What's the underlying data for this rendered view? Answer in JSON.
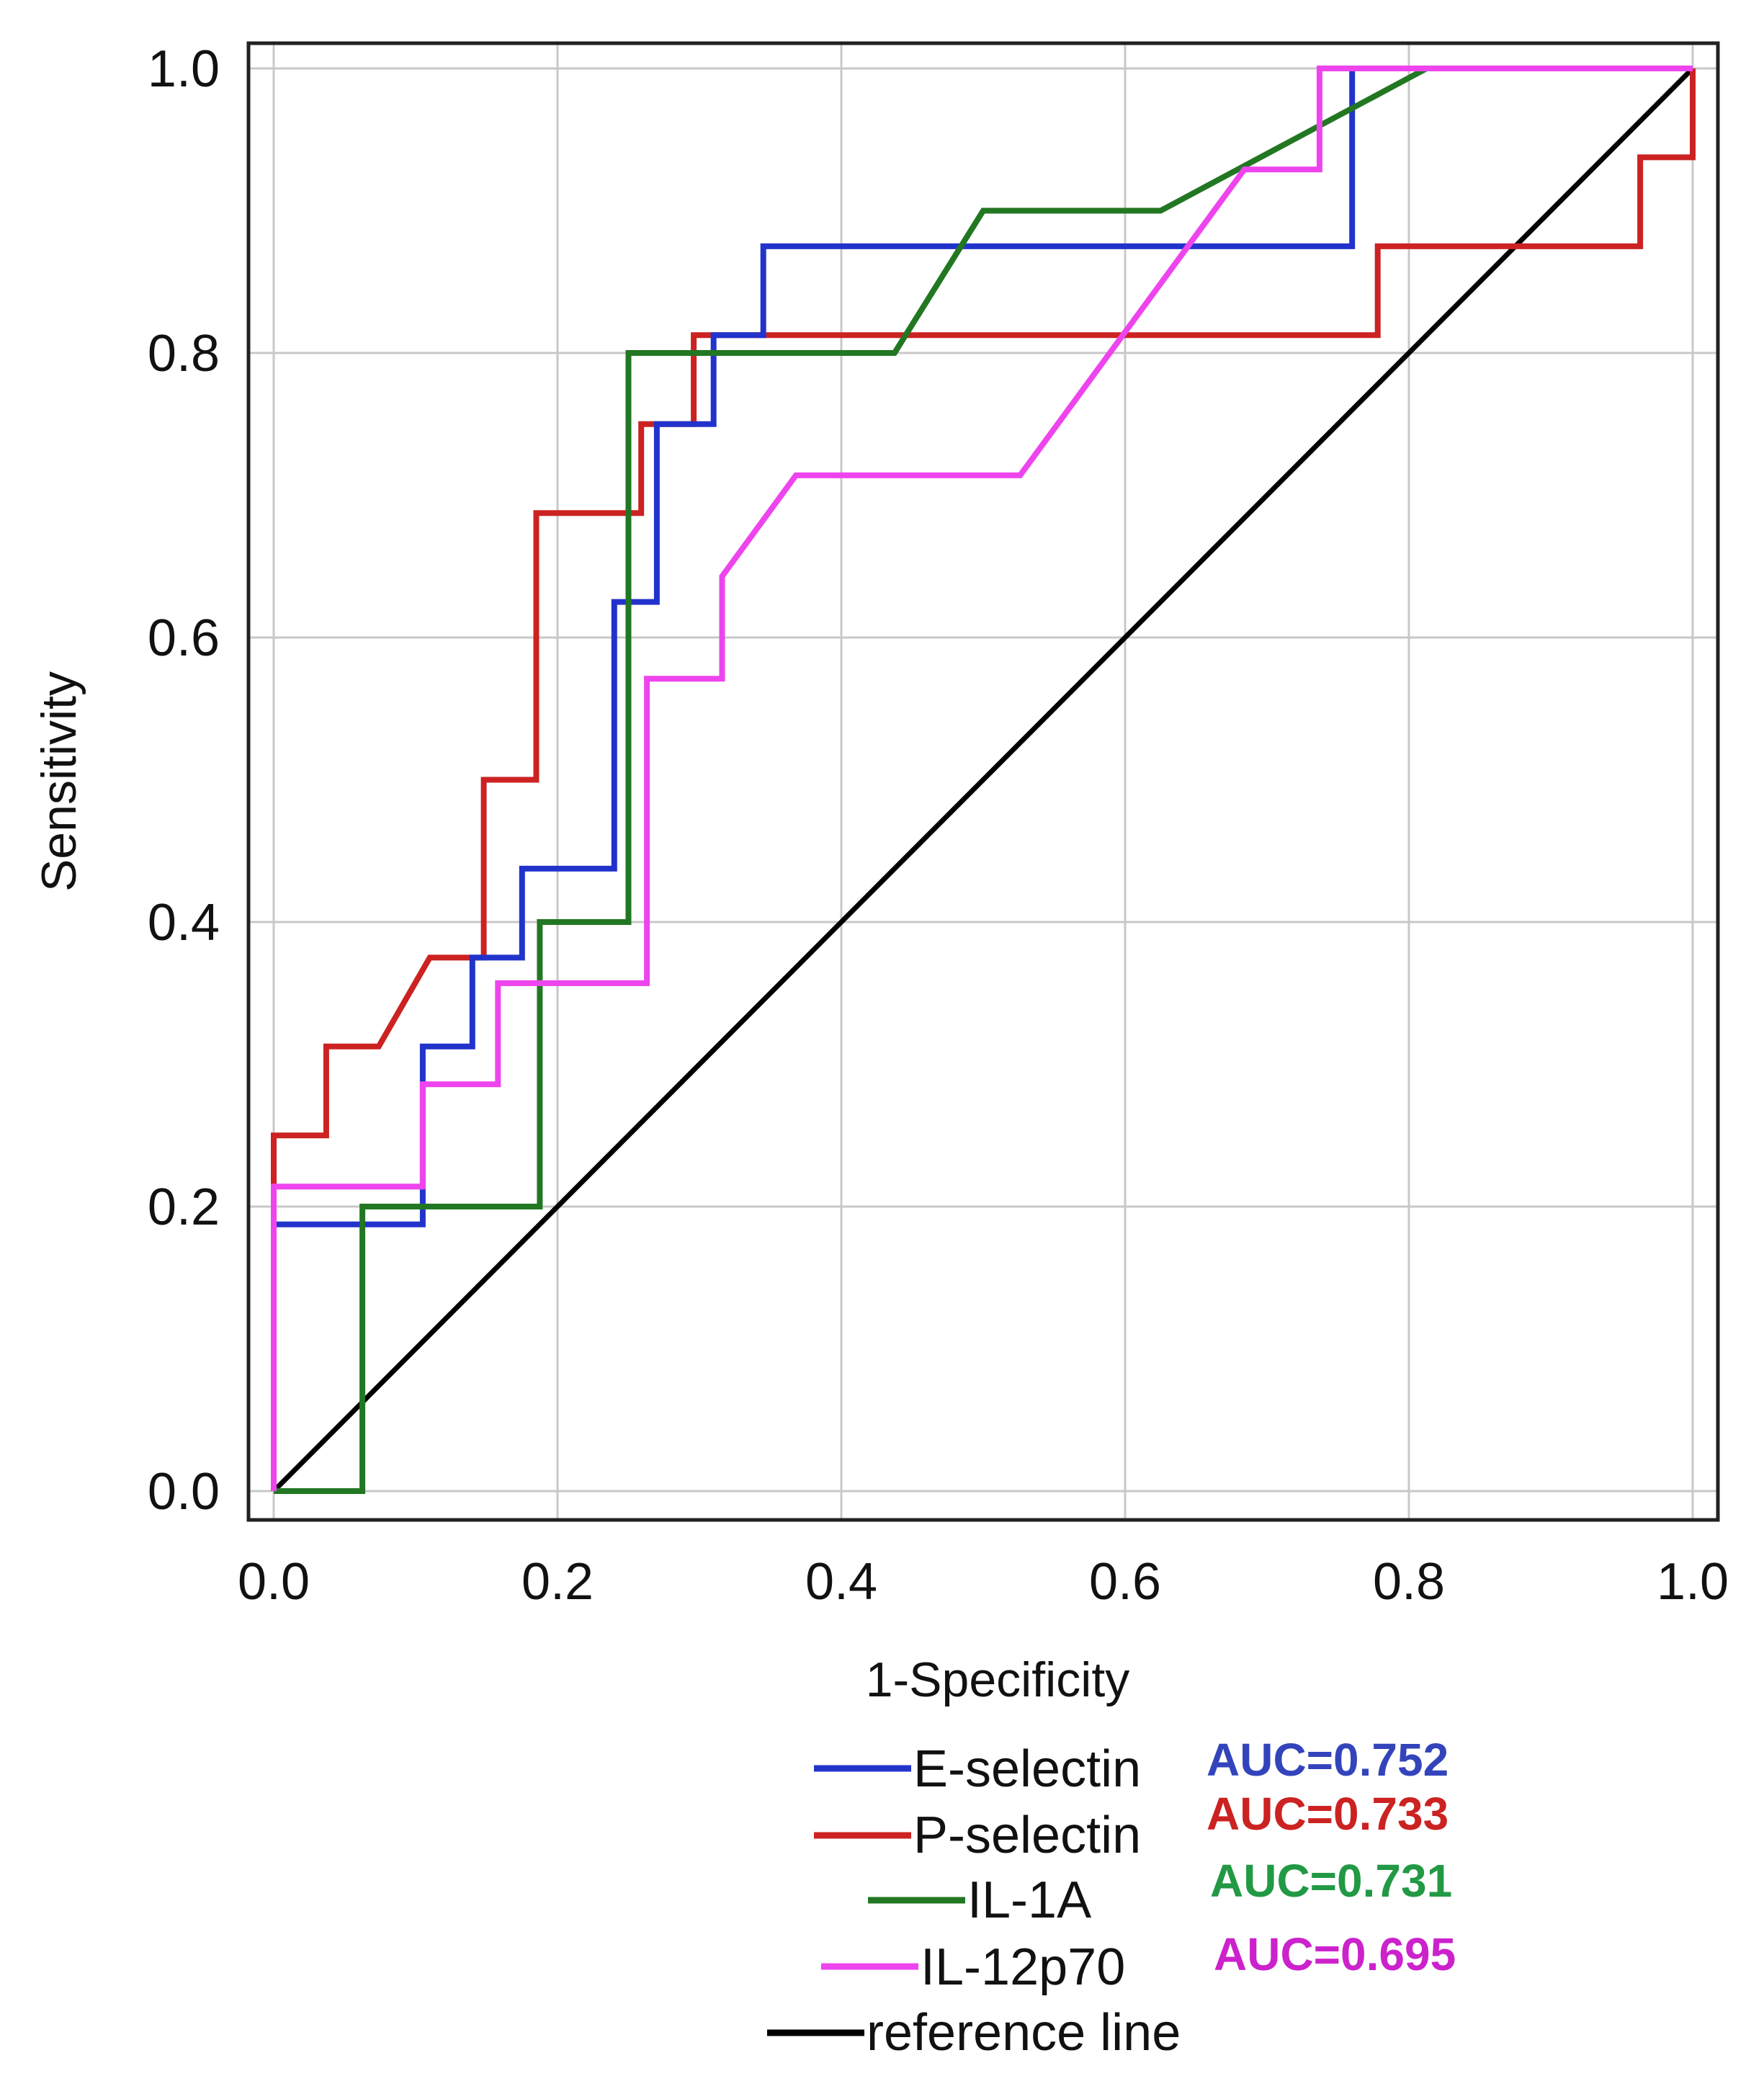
{
  "chart_data": {
    "type": "line",
    "title": "",
    "xlabel": "1-Specificity",
    "ylabel": "Sensitivity",
    "xlim": [
      0.0,
      1.0
    ],
    "ylim": [
      0.0,
      1.0
    ],
    "grid": true,
    "x_ticks": [
      "0.0",
      "0.2",
      "0.4",
      "0.6",
      "0.8",
      "1.0"
    ],
    "y_ticks": [
      "0.0",
      "0.2",
      "0.4",
      "0.6",
      "0.8",
      "1.0"
    ],
    "legend_position": "bottom-right",
    "series": [
      {
        "name": "E-selectin",
        "color": "#2233cc",
        "auc_label": "AUC=0.752",
        "auc_color": "#3344bb",
        "x": [
          0,
          0,
          0.105,
          0.105,
          0.14,
          0.14,
          0.175,
          0.175,
          0.24,
          0.24,
          0.27,
          0.27,
          0.31,
          0.31,
          0.345,
          0.345,
          0.76,
          0.76,
          1.0
        ],
        "y": [
          0,
          0.1875,
          0.1875,
          0.3125,
          0.3125,
          0.375,
          0.375,
          0.4375,
          0.4375,
          0.625,
          0.625,
          0.75,
          0.75,
          0.8125,
          0.8125,
          0.875,
          0.875,
          1.0,
          1.0
        ]
      },
      {
        "name": "P-selectin",
        "color": "#cc2222",
        "auc_label": "AUC=0.733",
        "auc_color": "#cc2222",
        "x": [
          0,
          0,
          0.037,
          0.037,
          0.074,
          0.11,
          0.148,
          0.148,
          0.185,
          0.185,
          0.259,
          0.259,
          0.296,
          0.296,
          0.778,
          0.778,
          0.963,
          0.963,
          1.0,
          1.0
        ],
        "y": [
          0,
          0.25,
          0.25,
          0.3125,
          0.3125,
          0.375,
          0.375,
          0.5,
          0.5,
          0.6875,
          0.6875,
          0.75,
          0.75,
          0.8125,
          0.8125,
          0.875,
          0.875,
          0.9375,
          0.9375,
          1.0
        ]
      },
      {
        "name": "IL-1A",
        "color": "#227722",
        "auc_label": "AUC=0.731",
        "auc_color": "#229944",
        "x": [
          0,
          0.0625,
          0.0625,
          0.1875,
          0.1875,
          0.25,
          0.25,
          0.4375,
          0.5,
          0.625,
          0.8125,
          1.0
        ],
        "y": [
          0,
          0,
          0.2,
          0.2,
          0.4,
          0.4,
          0.8,
          0.8,
          0.9,
          0.9,
          1.0,
          1.0
        ]
      },
      {
        "name": "IL-12p70",
        "color": "#ee44ee",
        "auc_label": "AUC=0.695",
        "auc_color": "#cc22cc",
        "x": [
          0,
          0,
          0.105,
          0.105,
          0.158,
          0.158,
          0.263,
          0.263,
          0.316,
          0.316,
          0.368,
          0.526,
          0.684,
          0.737,
          0.737,
          1.0
        ],
        "y": [
          0,
          0.214,
          0.214,
          0.286,
          0.286,
          0.357,
          0.357,
          0.571,
          0.571,
          0.643,
          0.714,
          0.714,
          0.929,
          0.929,
          1.0,
          1.0
        ]
      },
      {
        "name": "reference line",
        "color": "#000000",
        "x": [
          0,
          1
        ],
        "y": [
          0,
          1
        ]
      }
    ]
  }
}
